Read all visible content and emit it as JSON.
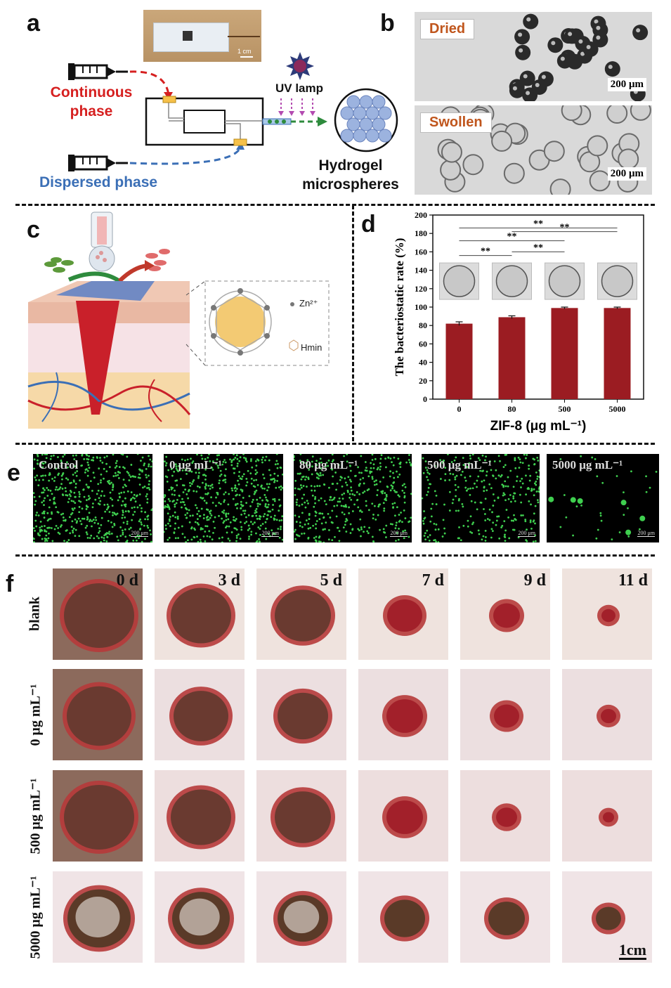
{
  "panels": {
    "a": {
      "label": "a",
      "continuous_phase": [
        "Continuous",
        "phase"
      ],
      "dispersed_phase": "Dispersed phase",
      "uv_lamp": "UV lamp",
      "hydrogel": [
        "Hydrogel",
        "microspheres"
      ],
      "photo_scale": "1 cm",
      "colors": {
        "continuous": "#d62020",
        "dispersed": "#3b6fb6",
        "flow": "#2e8b3d"
      }
    },
    "b": {
      "label": "b",
      "top_tag": "Dried",
      "bottom_tag": "Swollen",
      "scale": "200 μm"
    },
    "c": {
      "label": "c",
      "zn_label": "Zn²⁺",
      "hmin_label": "Hmin"
    },
    "d": {
      "label": "d",
      "sig": [
        "**",
        "**",
        "**",
        "**",
        "**"
      ]
    },
    "e": {
      "label": "e",
      "images": [
        "Control",
        "0 μg mL⁻¹",
        "80 μg mL⁻¹",
        "500 μg mL⁻¹",
        "5000 μg mL⁻¹"
      ],
      "scale": "200 μm"
    },
    "f": {
      "label": "f",
      "days": [
        "0 d",
        "3 d",
        "5 d",
        "7 d",
        "9 d",
        "11 d"
      ],
      "rows": [
        "blank",
        "0 μg mL⁻¹",
        "500 μg mL⁻¹",
        "5000 μg mL⁻¹"
      ],
      "scale": "1cm",
      "wound_sizes": [
        [
          1.0,
          0.86,
          0.8,
          0.5,
          0.38,
          0.2
        ],
        [
          0.92,
          0.78,
          0.72,
          0.52,
          0.36,
          0.22
        ],
        [
          1.0,
          0.86,
          0.8,
          0.52,
          0.3,
          0.16
        ],
        [
          0.9,
          0.82,
          0.72,
          0.58,
          0.52,
          0.36
        ]
      ]
    }
  },
  "chart_data": {
    "type": "bar",
    "categories": [
      "0",
      "80",
      "500",
      "5000"
    ],
    "values": [
      82,
      89,
      99,
      99
    ],
    "errors": [
      2,
      1.5,
      1,
      1
    ],
    "xlabel": "ZIF-8 (μg mL⁻¹)",
    "ylabel": "The bacteriostatic rate (%)",
    "ylim": [
      0,
      200
    ],
    "yticks": [
      0,
      20,
      40,
      60,
      80,
      100,
      120,
      140,
      160,
      180,
      200
    ],
    "bar_color": "#9b1c22"
  }
}
